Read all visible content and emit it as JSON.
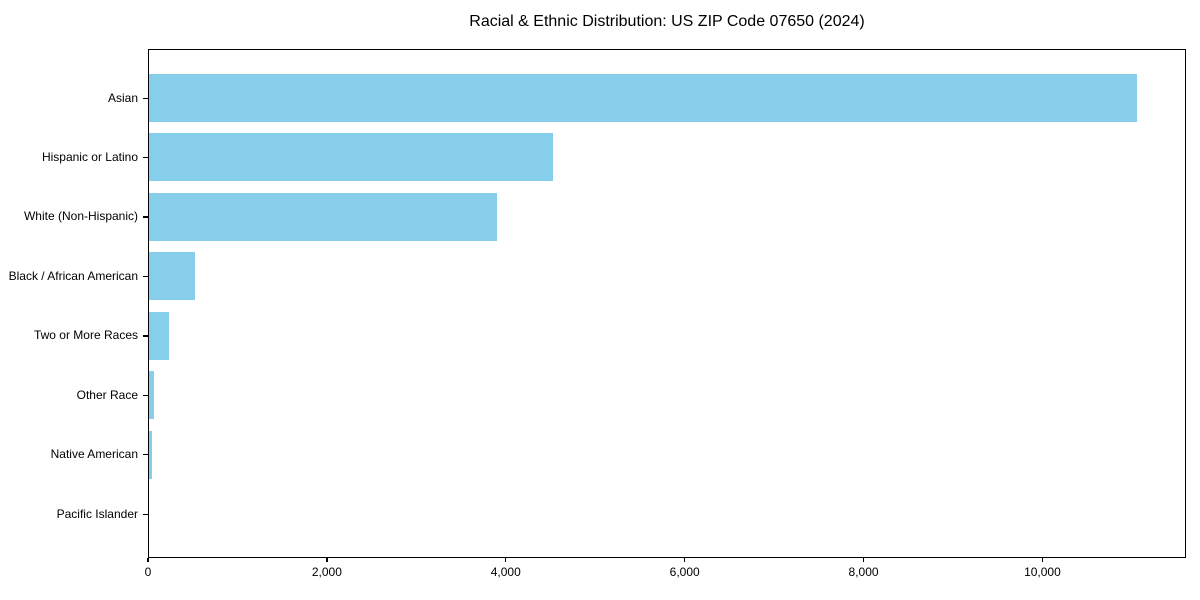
{
  "chart_data": {
    "type": "bar",
    "orientation": "horizontal",
    "title": "Racial & Ethnic Distribution: US ZIP Code 07650 (2024)",
    "categories": [
      "Asian",
      "Hispanic or Latino",
      "White (Non-Hispanic)",
      "Black / African American",
      "Two or More Races",
      "Other Race",
      "Native American",
      "Pacific Islander"
    ],
    "values": [
      11050,
      4520,
      3890,
      515,
      225,
      55,
      35,
      0
    ],
    "xlabel": "",
    "ylabel": "",
    "xlim": [
      0,
      11605
    ],
    "xticks": [
      0,
      2000,
      4000,
      6000,
      8000,
      10000
    ],
    "xtick_labels": [
      "0",
      "2,000",
      "4,000",
      "6,000",
      "8,000",
      "10,000"
    ],
    "grid": false,
    "legend": null,
    "bar_color": "#87CEEB",
    "background_color": "#ffffff",
    "text_color": "#000000"
  }
}
